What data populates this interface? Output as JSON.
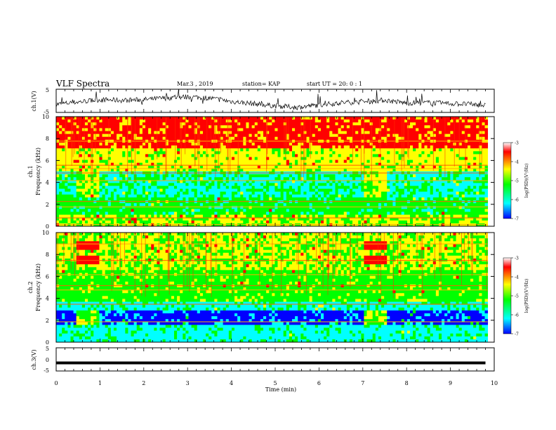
{
  "header": {
    "title": "VLF Spectra",
    "date": "Mar.3 , 2019",
    "station": "station= KAP",
    "start": "start UT = 20: 0 : 1"
  },
  "colors": {
    "colormap": [
      "#0000ff",
      "#00ffff",
      "#00ff00",
      "#ffff00",
      "#ff0000",
      "#ffffff"
    ],
    "waveform": "#000000"
  },
  "chart_data": [
    {
      "type": "line",
      "panel": "ch1-waveform",
      "ylabel": "ch.1(V)",
      "ylim": [
        -5,
        5
      ],
      "yticks": [
        "5",
        "-5"
      ],
      "xlim": [
        0,
        10
      ],
      "x": [
        0,
        0.5,
        1,
        1.5,
        2,
        2.5,
        3,
        3.5,
        4,
        4.5,
        5,
        5.5,
        6,
        6.5,
        7,
        7.5,
        8,
        8.5,
        9,
        9.5,
        9.8
      ],
      "values": [
        -1.5,
        -0.5,
        0.5,
        0.2,
        0.5,
        1.2,
        1.8,
        1.2,
        -0.3,
        -1.2,
        -2.2,
        -2.8,
        -1.8,
        -0.8,
        -0.5,
        0.3,
        -1.0,
        -0.8,
        -1.2,
        -1.5,
        -2.0
      ]
    },
    {
      "type": "heatmap",
      "panel": "ch1-spectrogram",
      "ylabel": "ch.1",
      "ylabel2": "Frequency (kHz)",
      "ylim": [
        0,
        10
      ],
      "yticks": [
        "0",
        "2",
        "4",
        "6",
        "8",
        "10"
      ],
      "xlim": [
        0,
        10
      ],
      "colorbar": {
        "label": "log(PSD)(V²/Hz)",
        "range": [
          -7,
          -3
        ],
        "ticks": [
          "-3",
          "-4",
          "-5",
          "-6",
          "-7"
        ]
      },
      "lines_khz": [
        0.2,
        0.8,
        1.8,
        2.3,
        4.2,
        4.9,
        5.3,
        5.6,
        7.8
      ]
    },
    {
      "type": "heatmap",
      "panel": "ch2-spectrogram",
      "ylabel": "ch.2",
      "ylabel2": "Frequency (kHz)",
      "ylim": [
        0,
        10
      ],
      "yticks": [
        "0",
        "2",
        "4",
        "6",
        "8",
        "10"
      ],
      "xlim": [
        0,
        10
      ],
      "colorbar": {
        "label": "log(PSD)(V²/Hz)",
        "range": [
          -7,
          -3
        ],
        "ticks": [
          "-3",
          "-4",
          "-5",
          "-6",
          "-7"
        ]
      },
      "lines_khz": [
        1.9,
        3.5,
        4.8,
        5.2,
        6.2,
        7.5,
        9.0
      ]
    },
    {
      "type": "line",
      "panel": "ch3-waveform",
      "ylabel": "ch.3(V)",
      "ylim": [
        -5,
        5
      ],
      "yticks": [
        "5",
        "0",
        "-5"
      ],
      "xlim": [
        0,
        10
      ],
      "x": [
        0,
        9.8
      ],
      "values": [
        -1.5,
        -1.5
      ],
      "xlabel": "Time (min)",
      "xticks": [
        "0",
        "1",
        "2",
        "3",
        "4",
        "5",
        "6",
        "7",
        "8",
        "9",
        "10"
      ]
    }
  ]
}
